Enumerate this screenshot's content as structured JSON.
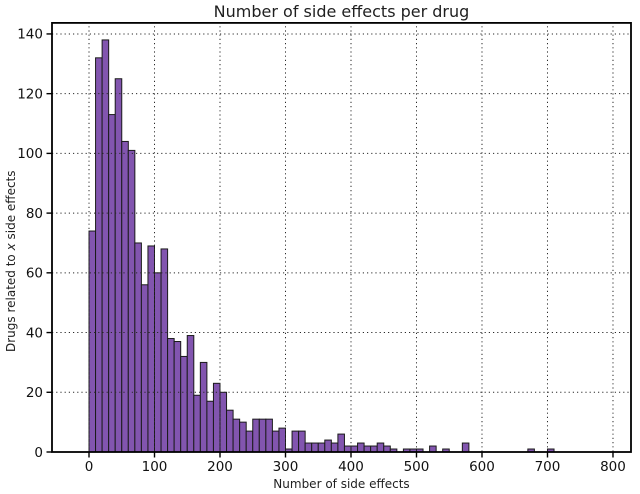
{
  "figure": {
    "background": "#ffffff"
  },
  "chart_data": {
    "type": "bar",
    "subtype": "histogram",
    "title": "Number of side effects per drug",
    "xlabel": "Number of side effects",
    "ylabel": "Drugs related to x side effects",
    "ylabel_prefix": "Drugs related to ",
    "ylabel_italic": "x",
    "ylabel_suffix": " side effects",
    "bin_start": 0,
    "bin_width": 10,
    "values": [
      74,
      132,
      138,
      113,
      125,
      104,
      101,
      70,
      56,
      69,
      60,
      68,
      38,
      37,
      32,
      39,
      19,
      30,
      17,
      23,
      20,
      14,
      11,
      10,
      7,
      11,
      11,
      11,
      7,
      8,
      1,
      7,
      7,
      3,
      3,
      3,
      4,
      3,
      6,
      2,
      2,
      3,
      2,
      2,
      3,
      2,
      1,
      0,
      1,
      1,
      1,
      0,
      2,
      0,
      1,
      0,
      0,
      3,
      0,
      0,
      0,
      0,
      0,
      0,
      0,
      0,
      0,
      1,
      0,
      0,
      1
    ],
    "x_ticks": [
      0,
      100,
      200,
      300,
      400,
      500,
      600,
      700,
      800
    ],
    "y_ticks": [
      0,
      20,
      40,
      60,
      80,
      100,
      120,
      140
    ],
    "xlim": [
      -56.5,
      827.5
    ],
    "ylim": [
      0,
      144
    ],
    "grid": "dotted",
    "legend": "none",
    "bar_color": "#8255af",
    "bar_edge_color": "#1b1b1b",
    "grid_color": "#2a2a2a",
    "axis_color": "#000000"
  }
}
